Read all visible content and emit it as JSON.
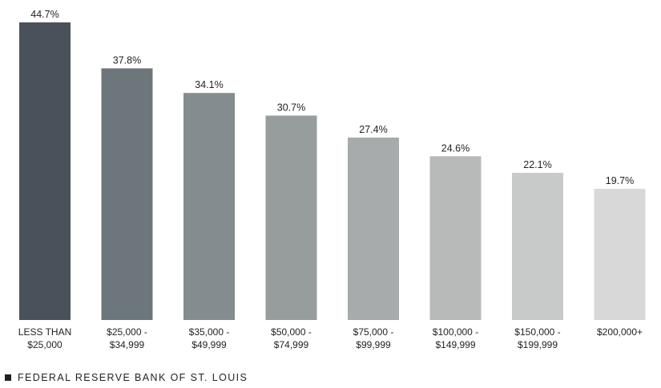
{
  "chart_data": {
    "type": "bar",
    "categories": [
      [
        "LESS THAN",
        "$25,000"
      ],
      [
        "$25,000 -",
        "$34,999"
      ],
      [
        "$35,000 -",
        "$49,999"
      ],
      [
        "$50,000 -",
        "$74,999"
      ],
      [
        "$75,000 -",
        "$99,999"
      ],
      [
        "$100,000 -",
        "$149,999"
      ],
      [
        "$150,000 -",
        "$199,999"
      ],
      [
        "$200,000+"
      ]
    ],
    "values": [
      44.7,
      37.8,
      34.1,
      30.7,
      27.4,
      24.6,
      22.1,
      19.7
    ],
    "value_labels": [
      "44.7%",
      "37.8%",
      "34.1%",
      "30.7%",
      "27.4%",
      "24.6%",
      "22.1%",
      "19.7%"
    ],
    "bar_colors": [
      "#4a515b",
      "#6c767b",
      "#858c8f",
      "#979c9d",
      "#a8abab",
      "#b8b9b9",
      "#c8c9c9",
      "#d8d8d8"
    ],
    "title": "",
    "xlabel": "",
    "ylabel": "",
    "ylim": [
      0,
      44.7
    ],
    "grid": false,
    "legend": "none"
  },
  "footer": {
    "source_text": "FEDERAL RESERVE BANK OF ST. LOUIS"
  }
}
